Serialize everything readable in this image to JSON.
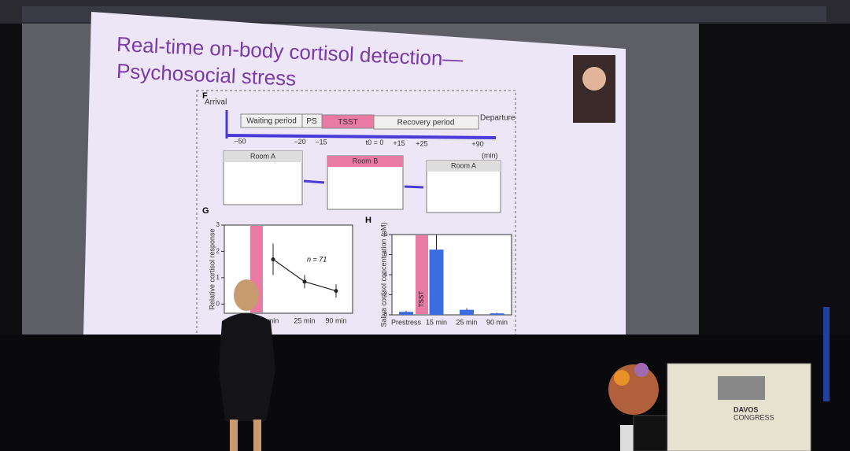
{
  "slide": {
    "title_line1": "Real-time on-body cortisol detection—",
    "title_line2": "Psychosocial stress"
  },
  "timeline": {
    "panel": "F",
    "start_label": "Arrival",
    "end_label": "Departure",
    "phases": [
      "Waiting period",
      "PS",
      "TSST",
      "Recovery period"
    ],
    "ticks": [
      "−50",
      "−20",
      "−15",
      "t0 = 0",
      "+15",
      "+25",
      "+90"
    ],
    "unit": "(min)",
    "rooms": [
      "Room A",
      "Room B",
      "Room A"
    ]
  },
  "chart_data": [
    {
      "type": "line",
      "panel": "G",
      "ylabel": "Relative cortisol response",
      "categories": [
        "min",
        "25 min",
        "90 min"
      ],
      "values": [
        1.7,
        0.85,
        0.5
      ],
      "errors": [
        0.6,
        0.25,
        0.25
      ],
      "annotation": "n = 71",
      "color": "#222222",
      "ylim": [
        -0.35,
        3
      ],
      "yticks": [
        0,
        1,
        2,
        3
      ]
    },
    {
      "type": "bar",
      "panel": "H",
      "ylabel": "Saliva cortisol concentration (nM)",
      "categories": [
        "Prestress",
        "15 min",
        "25 min",
        "90 min"
      ],
      "values": [
        0.3,
        6.5,
        0.5,
        0.15
      ],
      "errors": [
        0.1,
        1.5,
        0.15,
        0.05
      ],
      "annotation": "TSST",
      "color": "#3b6de0",
      "ylim": [
        0,
        8
      ],
      "yticks": [
        0,
        2,
        4,
        6,
        8
      ]
    }
  ],
  "venue": {
    "line1": "DAVOS",
    "line2": "CONGRESS"
  }
}
